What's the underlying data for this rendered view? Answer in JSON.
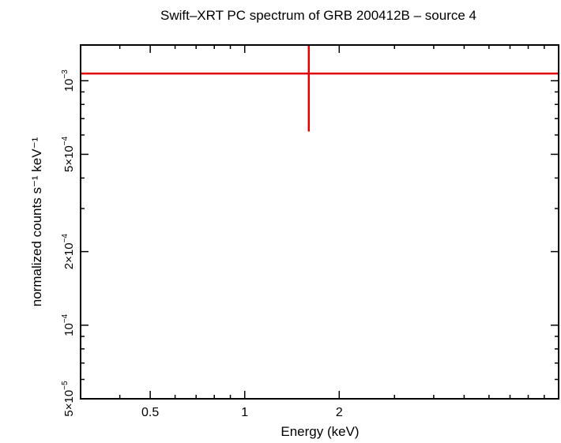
{
  "chart_data": {
    "type": "scatter",
    "title": "Swift–XRT PC spectrum of GRB 200412B – source 4",
    "xlabel": "Energy (keV)",
    "ylabel": "normalized counts s⁻¹ keV⁻¹",
    "x_scale": "log",
    "y_scale": "log",
    "xlim": [
      0.3,
      10
    ],
    "ylim": [
      5e-05,
      0.0014
    ],
    "x_ticks": [
      {
        "value": 0.5,
        "label": "0.5"
      },
      {
        "value": 1,
        "label": "1"
      },
      {
        "value": 2,
        "label": "2"
      }
    ],
    "y_ticks": [
      {
        "value": 5e-05,
        "base": "5×10",
        "exp": "−5"
      },
      {
        "value": 0.0001,
        "base": "10",
        "exp": "−4"
      },
      {
        "value": 0.0002,
        "base": "2×10",
        "exp": "−4"
      },
      {
        "value": 0.0005,
        "base": "5×10",
        "exp": "−4"
      },
      {
        "value": 0.001,
        "base": "10",
        "exp": "−3"
      }
    ],
    "grid": false,
    "series": [
      {
        "color": "#e00000",
        "points": [
          {
            "x": 1.6,
            "x_low": 0.3,
            "x_high": 10,
            "y": 0.00107,
            "y_low": 0.00062,
            "y_high": 0.0016
          }
        ]
      }
    ]
  }
}
